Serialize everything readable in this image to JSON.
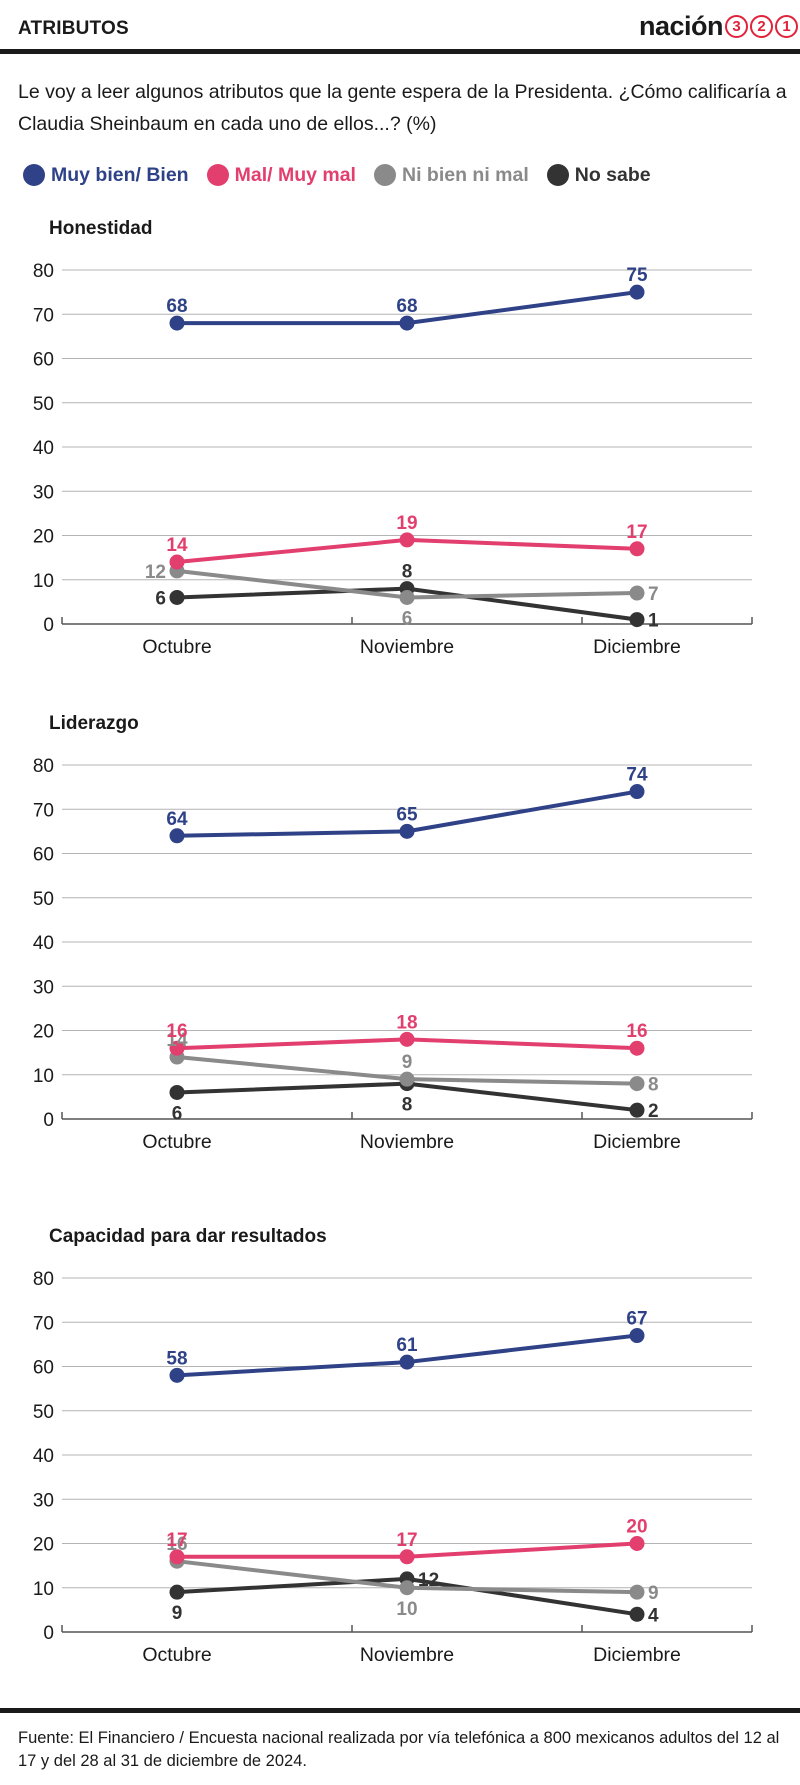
{
  "header": {
    "title": "ATRIBUTOS",
    "brand_word": "nación",
    "brand_digits": [
      "3",
      "2",
      "1"
    ]
  },
  "question": "Le voy a leer algunos atributos que la gente espera de la Presidenta. ¿Cómo calificaría a Claudia Sheinbaum en cada uno de ellos...?  (%)",
  "legend": [
    {
      "label": "Muy bien/ Bien",
      "color": "#2f4287"
    },
    {
      "label": "Mal/ Muy mal",
      "color": "#e23f6f"
    },
    {
      "label": "Ni bien ni mal",
      "color": "#8a8a8a"
    },
    {
      "label": "No sabe",
      "color": "#333333"
    }
  ],
  "chart_data": [
    {
      "type": "line",
      "title": "Honestidad",
      "categories": [
        "Octubre",
        "Noviembre",
        "Diciembre"
      ],
      "ylim": [
        0,
        80
      ],
      "yticks": [
        0,
        10,
        20,
        30,
        40,
        50,
        60,
        70,
        80
      ],
      "grid": true,
      "series": [
        {
          "name": "Muy bien/ Bien",
          "color": "#2f4287",
          "values": [
            68,
            68,
            75
          ],
          "label_pos": [
            "above",
            "above",
            "above"
          ]
        },
        {
          "name": "Mal/ Muy mal",
          "color": "#e23f6f",
          "values": [
            14,
            19,
            17
          ],
          "label_pos": [
            "above",
            "above",
            "above"
          ]
        },
        {
          "name": "Ni bien ni mal",
          "color": "#8a8a8a",
          "values": [
            12,
            6,
            7
          ],
          "label_pos": [
            "left",
            "below",
            "right"
          ]
        },
        {
          "name": "No sabe",
          "color": "#333333",
          "values": [
            6,
            8,
            1
          ],
          "label_pos": [
            "left",
            "above",
            "right"
          ]
        }
      ]
    },
    {
      "type": "line",
      "title": "Liderazgo",
      "categories": [
        "Octubre",
        "Noviembre",
        "Diciembre"
      ],
      "ylim": [
        0,
        80
      ],
      "yticks": [
        0,
        10,
        20,
        30,
        40,
        50,
        60,
        70,
        80
      ],
      "grid": true,
      "series": [
        {
          "name": "Muy bien/ Bien",
          "color": "#2f4287",
          "values": [
            64,
            65,
            74
          ],
          "label_pos": [
            "above",
            "above",
            "above"
          ]
        },
        {
          "name": "Mal/ Muy mal",
          "color": "#e23f6f",
          "values": [
            16,
            18,
            16
          ],
          "label_pos": [
            "above",
            "above",
            "above"
          ]
        },
        {
          "name": "Ni bien ni mal",
          "color": "#8a8a8a",
          "values": [
            14,
            9,
            8
          ],
          "label_pos": [
            "above",
            "above",
            "right"
          ]
        },
        {
          "name": "No sabe",
          "color": "#333333",
          "values": [
            6,
            8,
            2
          ],
          "label_pos": [
            "below",
            "below",
            "right"
          ]
        }
      ]
    },
    {
      "type": "line",
      "title": "Capacidad para dar resultados",
      "categories": [
        "Octubre",
        "Noviembre",
        "Diciembre"
      ],
      "ylim": [
        0,
        80
      ],
      "yticks": [
        0,
        10,
        20,
        30,
        40,
        50,
        60,
        70,
        80
      ],
      "grid": true,
      "series": [
        {
          "name": "Muy bien/ Bien",
          "color": "#2f4287",
          "values": [
            58,
            61,
            67
          ],
          "label_pos": [
            "above",
            "above",
            "above"
          ]
        },
        {
          "name": "Mal/ Muy mal",
          "color": "#e23f6f",
          "values": [
            17,
            17,
            20
          ],
          "label_pos": [
            "above",
            "above",
            "above"
          ]
        },
        {
          "name": "Ni bien ni mal",
          "color": "#8a8a8a",
          "values": [
            16,
            10,
            9
          ],
          "label_pos": [
            "above",
            "below",
            "right"
          ]
        },
        {
          "name": "No sabe",
          "color": "#333333",
          "values": [
            9,
            12,
            4
          ],
          "label_pos": [
            "below",
            "right",
            "right"
          ]
        }
      ]
    }
  ],
  "source": "Fuente: El Financiero / Encuesta nacional realizada por vía telefónica a 800 mexicanos adultos del 12 al 17 y del 28 al 31 de diciembre de 2024."
}
